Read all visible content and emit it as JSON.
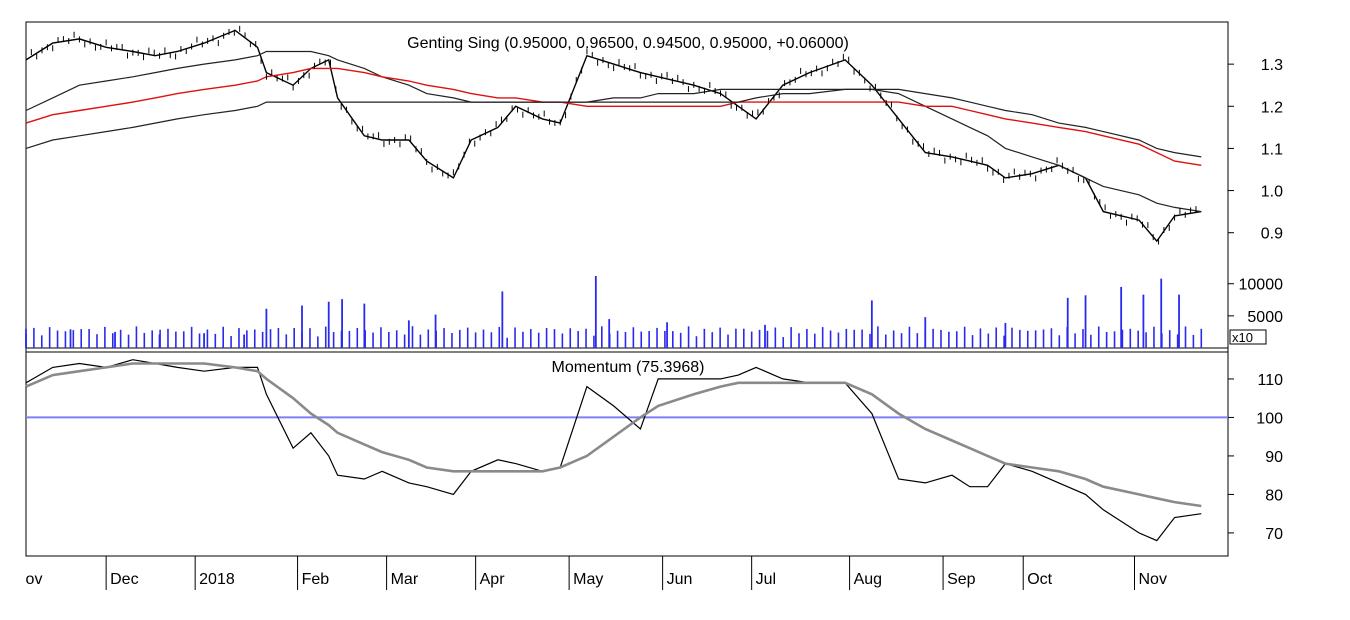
{
  "colors": {
    "price": "#000000",
    "ma_red": "#e01010",
    "ma_black": "#222222",
    "volume": "#2a2aee",
    "momentum": "#000000",
    "momentum_ma": "#8a8a8a",
    "ref_line": "#7f7ff5"
  },
  "chart_data": [
    {
      "type": "line",
      "title": "Genting Sing (0.95000, 0.96500, 0.94500, 0.95000, +0.06000)",
      "ylim": [
        0.84,
        1.4
      ],
      "yticks": [
        "0.9",
        "1.0",
        "1.1",
        "1.2",
        "1.3"
      ],
      "ytick_values": [
        0.9,
        1.0,
        1.1,
        1.2,
        1.3
      ],
      "x": [
        0.0,
        0.3,
        0.6,
        0.9,
        1.2,
        1.45,
        1.7,
        2.0,
        2.35,
        2.6,
        2.7,
        3.0,
        3.2,
        3.4,
        3.5,
        3.8,
        4.0,
        4.3,
        4.5,
        4.8,
        5.0,
        5.3,
        5.5,
        5.8,
        6.0,
        6.3,
        6.6,
        6.9,
        7.1,
        7.5,
        7.8,
        8.0,
        8.2,
        8.5,
        8.8,
        9.2,
        9.5,
        9.8,
        10.1,
        10.4,
        10.6,
        10.8,
        11.0,
        11.3,
        11.6,
        11.9,
        12.1,
        12.5,
        12.7,
        12.9,
        13.2
      ],
      "series": [
        {
          "values": [
            1.31,
            1.35,
            1.36,
            1.34,
            1.33,
            1.32,
            1.33,
            1.35,
            1.38,
            1.34,
            1.28,
            1.25,
            1.29,
            1.31,
            1.22,
            1.13,
            1.12,
            1.12,
            1.07,
            1.03,
            1.12,
            1.15,
            1.2,
            1.17,
            1.16,
            1.32,
            1.3,
            1.28,
            1.27,
            1.25,
            1.23,
            1.2,
            1.17,
            1.25,
            1.28,
            1.31,
            1.25,
            1.17,
            1.09,
            1.08,
            1.07,
            1.06,
            1.03,
            1.04,
            1.06,
            1.03,
            0.95,
            0.93,
            0.88,
            0.94,
            0.95
          ]
        },
        {
          "values": [
            1.19,
            1.22,
            1.25,
            1.26,
            1.27,
            1.28,
            1.29,
            1.3,
            1.31,
            1.32,
            1.33,
            1.33,
            1.33,
            1.32,
            1.31,
            1.29,
            1.27,
            1.25,
            1.23,
            1.22,
            1.21,
            1.21,
            1.21,
            1.21,
            1.21,
            1.21,
            1.22,
            1.22,
            1.23,
            1.23,
            1.24,
            1.24,
            1.24,
            1.24,
            1.24,
            1.24,
            1.24,
            1.23,
            1.2,
            1.17,
            1.15,
            1.13,
            1.1,
            1.08,
            1.06,
            1.03,
            1.01,
            0.99,
            0.97,
            0.96,
            0.95
          ]
        },
        {
          "values": [
            1.16,
            1.18,
            1.19,
            1.2,
            1.21,
            1.22,
            1.23,
            1.24,
            1.25,
            1.26,
            1.27,
            1.28,
            1.29,
            1.29,
            1.29,
            1.28,
            1.27,
            1.26,
            1.25,
            1.24,
            1.23,
            1.22,
            1.22,
            1.21,
            1.21,
            1.2,
            1.2,
            1.2,
            1.2,
            1.2,
            1.2,
            1.21,
            1.21,
            1.21,
            1.21,
            1.21,
            1.21,
            1.21,
            1.2,
            1.2,
            1.19,
            1.18,
            1.17,
            1.16,
            1.15,
            1.14,
            1.13,
            1.11,
            1.09,
            1.07,
            1.06
          ]
        },
        {
          "values": [
            1.1,
            1.12,
            1.13,
            1.14,
            1.15,
            1.16,
            1.17,
            1.18,
            1.19,
            1.2,
            1.21,
            1.21,
            1.21,
            1.21,
            1.21,
            1.21,
            1.21,
            1.21,
            1.21,
            1.21,
            1.21,
            1.21,
            1.21,
            1.21,
            1.21,
            1.21,
            1.21,
            1.21,
            1.21,
            1.21,
            1.21,
            1.21,
            1.22,
            1.23,
            1.23,
            1.24,
            1.24,
            1.24,
            1.23,
            1.22,
            1.21,
            1.2,
            1.19,
            1.18,
            1.16,
            1.15,
            1.14,
            1.12,
            1.1,
            1.09,
            1.08
          ]
        }
      ]
    },
    {
      "type": "bar",
      "ylim": [
        0,
        14000
      ],
      "yticks": [
        "10000",
        "5000"
      ],
      "ytick_values": [
        10000,
        5000
      ],
      "multiplier_label": "x10",
      "bar_count": 150,
      "spikes": [
        [
          0,
          0.0,
          3000
        ],
        [
          1,
          0.5,
          2900
        ],
        [
          2,
          1.0,
          2500
        ],
        [
          3,
          1.5,
          2100
        ],
        [
          4,
          2.0,
          2300
        ],
        [
          5,
          2.45,
          2100
        ],
        [
          6,
          2.7,
          6100
        ],
        [
          7,
          3.1,
          6600
        ],
        [
          8,
          3.4,
          7200
        ],
        [
          9,
          3.55,
          7600
        ],
        [
          10,
          3.8,
          6900
        ],
        [
          11,
          4.3,
          4300
        ],
        [
          12,
          4.6,
          5200
        ],
        [
          13,
          5.35,
          8800
        ],
        [
          14,
          6.4,
          11200
        ],
        [
          15,
          6.55,
          4500
        ],
        [
          16,
          7.2,
          4000
        ],
        [
          17,
          8.3,
          3600
        ],
        [
          18,
          9.5,
          7400
        ],
        [
          19,
          10.1,
          4800
        ],
        [
          20,
          11.0,
          3900
        ],
        [
          21,
          11.7,
          7800
        ],
        [
          22,
          11.9,
          8200
        ],
        [
          23,
          12.3,
          9500
        ],
        [
          24,
          12.55,
          8300
        ],
        [
          25,
          12.75,
          10800
        ],
        [
          26,
          12.95,
          8300
        ]
      ]
    },
    {
      "type": "line",
      "title": "Momentum (75.3968)",
      "ylim": [
        64,
        117
      ],
      "yticks": [
        "110",
        "100",
        "90",
        "80",
        "70"
      ],
      "ytick_values": [
        110,
        100,
        90,
        80,
        70
      ],
      "reference": 100,
      "x": [
        0.0,
        0.3,
        0.6,
        0.9,
        1.2,
        1.45,
        1.7,
        2.0,
        2.35,
        2.6,
        2.7,
        3.0,
        3.2,
        3.4,
        3.5,
        3.8,
        4.0,
        4.3,
        4.5,
        4.8,
        5.0,
        5.3,
        5.5,
        5.8,
        6.0,
        6.3,
        6.6,
        6.9,
        7.1,
        7.5,
        7.8,
        8.0,
        8.2,
        8.5,
        8.8,
        9.2,
        9.5,
        9.8,
        10.1,
        10.4,
        10.6,
        10.8,
        11.0,
        11.3,
        11.6,
        11.9,
        12.1,
        12.5,
        12.7,
        12.9,
        13.2
      ],
      "series": [
        {
          "values": [
            109,
            113,
            114,
            113,
            115,
            114,
            113,
            112,
            113,
            113,
            106,
            92,
            96,
            90,
            85,
            84,
            86,
            83,
            82,
            80,
            86,
            89,
            88,
            86,
            87,
            108,
            103,
            97,
            110,
            110,
            110,
            111,
            113,
            110,
            109,
            109,
            101,
            84,
            83,
            85,
            82,
            82,
            88,
            86,
            83,
            80,
            76,
            70,
            68,
            74,
            75
          ]
        },
        {
          "values": [
            108,
            111,
            112,
            113,
            114,
            114,
            114,
            114,
            113,
            112,
            110,
            105,
            101,
            98,
            96,
            93,
            91,
            89,
            87,
            86,
            86,
            86,
            86,
            86,
            87,
            90,
            95,
            100,
            103,
            106,
            108,
            109,
            109,
            109,
            109,
            109,
            106,
            101,
            97,
            94,
            92,
            90,
            88,
            87,
            86,
            84,
            82,
            80,
            79,
            78,
            77
          ]
        }
      ]
    }
  ],
  "x_axis": {
    "labels": [
      "ov",
      "Dec",
      "2018",
      "Feb",
      "Mar",
      "Apr",
      "May",
      "Jun",
      "Jul",
      "Aug",
      "Sep",
      "Oct",
      "Nov"
    ],
    "positions": [
      -0.05,
      0.9,
      1.9,
      3.05,
      4.05,
      5.05,
      6.1,
      7.15,
      8.15,
      9.25,
      10.3,
      11.2,
      12.45
    ],
    "xlim": [
      0,
      13.5
    ]
  }
}
